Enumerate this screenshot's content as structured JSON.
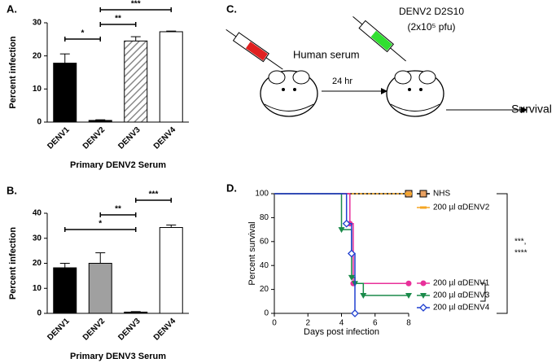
{
  "chart_data": [
    {
      "type": "bar",
      "panel": "A.",
      "ylabel": "Percent infection",
      "xlabel": "Primary DENV2 Serum",
      "categories": [
        "DENV1",
        "DENV2",
        "DENV3",
        "DENV4"
      ],
      "values": [
        17.8,
        0.5,
        24.5,
        27.3
      ],
      "errors": [
        2.8,
        0.2,
        1.3,
        0.2
      ],
      "colors": [
        "#000000",
        "#000000",
        "#a0a0a0",
        "#ffffff"
      ],
      "hatched": [
        false,
        false,
        true,
        false
      ],
      "ylim": [
        0,
        30
      ],
      "yticks": [
        0,
        10,
        20,
        30
      ],
      "annotations": [
        {
          "label": "*",
          "between": [
            "DENV1",
            "DENV2"
          ]
        },
        {
          "label": "**",
          "between": [
            "DENV2",
            "DENV3"
          ]
        },
        {
          "label": "***",
          "between": [
            "DENV2",
            "DENV4"
          ]
        }
      ]
    },
    {
      "type": "bar",
      "panel": "B.",
      "ylabel": "Percent infection",
      "xlabel": "Primary DENV3 Serum",
      "categories": [
        "DENV1",
        "DENV2",
        "DENV3",
        "DENV4"
      ],
      "values": [
        18.2,
        20,
        0.5,
        34.3
      ],
      "errors": [
        1.8,
        4.2,
        0.2,
        1
      ],
      "colors": [
        "#000000",
        "#a0a0a0",
        "#000000",
        "#ffffff"
      ],
      "hatched": [
        false,
        false,
        false,
        false
      ],
      "ylim": [
        0,
        40
      ],
      "yticks": [
        0,
        10,
        20,
        30,
        40
      ],
      "annotations": [
        {
          "label": "*",
          "between": [
            "DENV1",
            "DENV3"
          ]
        },
        {
          "label": "**",
          "between": [
            "DENV2",
            "DENV3"
          ]
        },
        {
          "label": "***",
          "between": [
            "DENV3",
            "DENV4"
          ]
        }
      ]
    },
    {
      "type": "line",
      "panel": "D.",
      "ylabel": "Percent survival",
      "xlabel": "Days post infection",
      "xlim": [
        0,
        8
      ],
      "xticks": [
        0,
        2,
        4,
        6,
        8
      ],
      "ylim": [
        0,
        100
      ],
      "yticks": [
        0,
        20,
        40,
        60,
        80,
        100
      ],
      "series": [
        {
          "name": "NHS",
          "color": "#000000",
          "marker": "square",
          "x": [
            0,
            8
          ],
          "values": [
            100,
            100
          ]
        },
        {
          "name": "200 µl αDENV2",
          "color": "#f5a623",
          "marker": "dash",
          "x": [
            0,
            8
          ],
          "values": [
            100,
            100
          ]
        },
        {
          "name": "200 µl αDENV1",
          "color": "#e8309a",
          "marker": "circle",
          "x": [
            0,
            4.5,
            4.7,
            8
          ],
          "values": [
            100,
            75,
            25,
            25
          ]
        },
        {
          "name": "200 µl αDENV3",
          "color": "#1a8a4a",
          "marker": "triangle",
          "x": [
            0,
            4,
            4.6,
            4.8,
            5.3,
            8
          ],
          "values": [
            100,
            70,
            30,
            25,
            15,
            15
          ]
        },
        {
          "name": "200 µl αDENV4",
          "color": "#2040d0",
          "marker": "diamond",
          "x": [
            0,
            4.3,
            4.6,
            4.8
          ],
          "values": [
            100,
            75,
            50,
            0
          ]
        }
      ],
      "annotations": [
        "***,",
        "****"
      ]
    }
  ],
  "diagram": {
    "panel": "C.",
    "serum": "Human serum",
    "interval": "24 hr",
    "virus": "DENV2 D2S10",
    "dose": "(2x10⁵ pfu)",
    "outcome": "Survival"
  }
}
